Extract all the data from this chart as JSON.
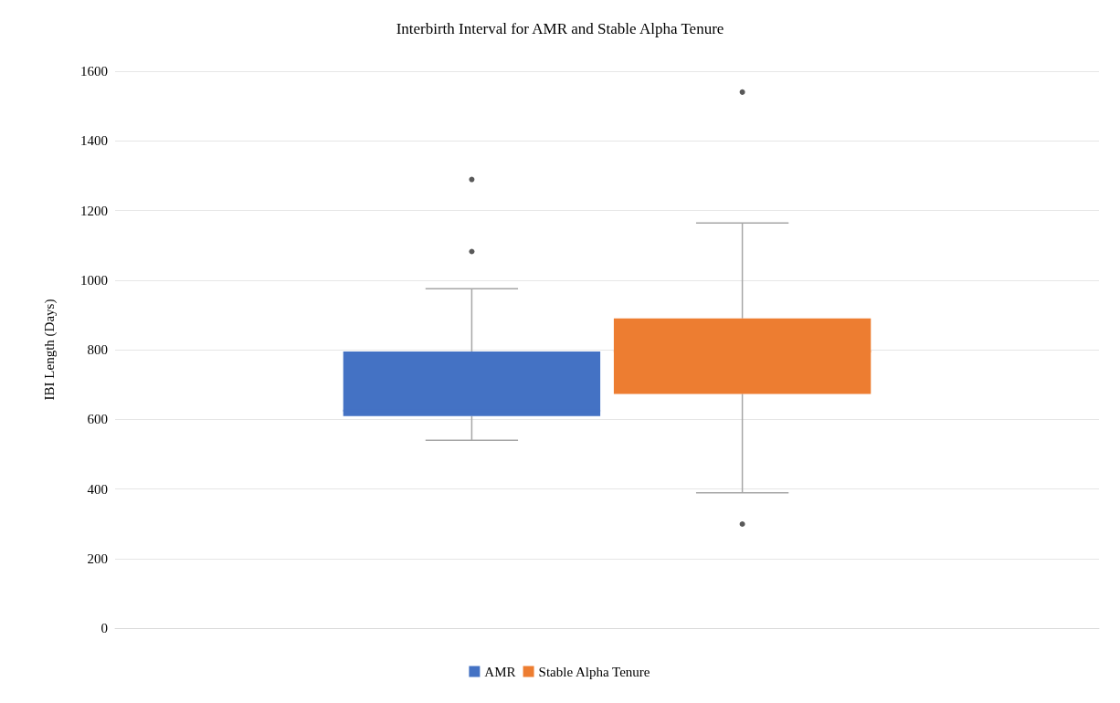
{
  "chart_data": {
    "type": "box",
    "title": "Interbirth Interval for AMR and Stable Alpha Tenure",
    "ylabel": "IBI Length (Days)",
    "categories": [
      null
    ],
    "series": [
      {
        "name": "AMR",
        "color": "#4472c4",
        "boxes": [
          {
            "low": 540,
            "q1": 609,
            "median": 625,
            "q3": 795,
            "high": 975,
            "outliers": [
              1082,
              1289
            ]
          }
        ]
      },
      {
        "name": "Stable Alpha Tenure",
        "color": "#ed7d31",
        "boxes": [
          {
            "low": 389,
            "q1": 673,
            "median": 795,
            "q3": 890,
            "high": 1164,
            "outliers": [
              299,
              1540
            ]
          }
        ]
      }
    ],
    "ylim": [
      0,
      1600
    ],
    "yticks": [
      0,
      200,
      400,
      600,
      800,
      1000,
      1200,
      1400,
      1600
    ],
    "grid": "y",
    "legend": "bottom"
  }
}
